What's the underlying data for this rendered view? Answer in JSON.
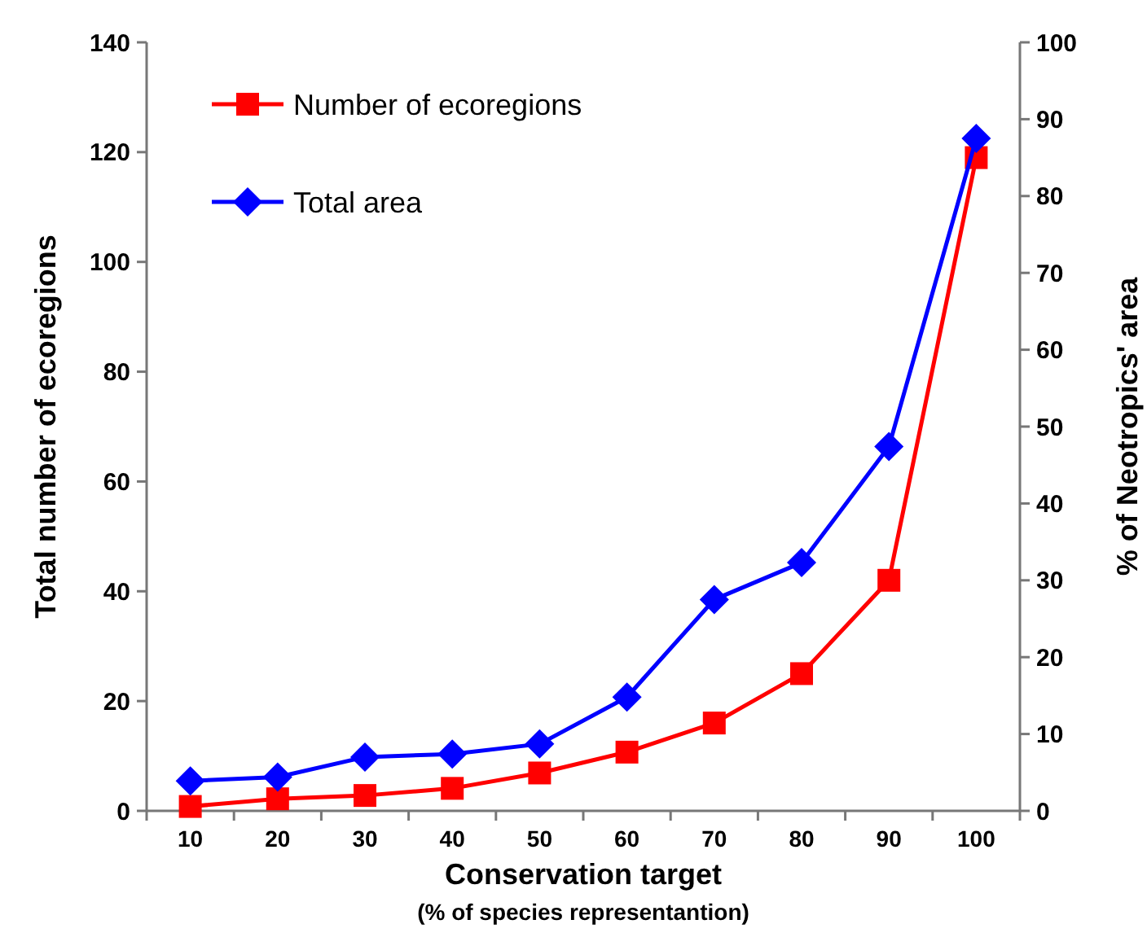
{
  "chart_data": {
    "type": "line",
    "xlabel": "Conservation target",
    "annotations": [
      "(% of species representantion)"
    ],
    "ylabel": "Total number of ecoregions",
    "y2label": "% of Neotropics' area",
    "categories": [
      "10",
      "20",
      "30",
      "40",
      "50",
      "60",
      "70",
      "80",
      "90",
      "100"
    ],
    "series": [
      {
        "name": "Number of ecoregions",
        "color": "#ff0000",
        "marker": "square",
        "values": [
          0.8,
          2.2,
          2.8,
          4.1,
          6.9,
          10.7,
          16,
          25,
          42,
          119
        ]
      },
      {
        "name": "Total area",
        "color": "#0000ff",
        "marker": "diamond",
        "axis": "y2",
        "values": [
          3.9,
          4.4,
          7.0,
          7.4,
          8.7,
          14.8,
          27.5,
          32.3,
          47.4,
          87.5
        ]
      }
    ],
    "ylim": [
      0,
      140
    ],
    "yticks": [
      0,
      20,
      40,
      60,
      80,
      100,
      120,
      140
    ],
    "y2lim": [
      0,
      100
    ],
    "y2ticks": [
      0,
      10,
      20,
      30,
      40,
      50,
      60,
      70,
      80,
      90,
      100
    ],
    "legend": "top left",
    "grid": false
  }
}
